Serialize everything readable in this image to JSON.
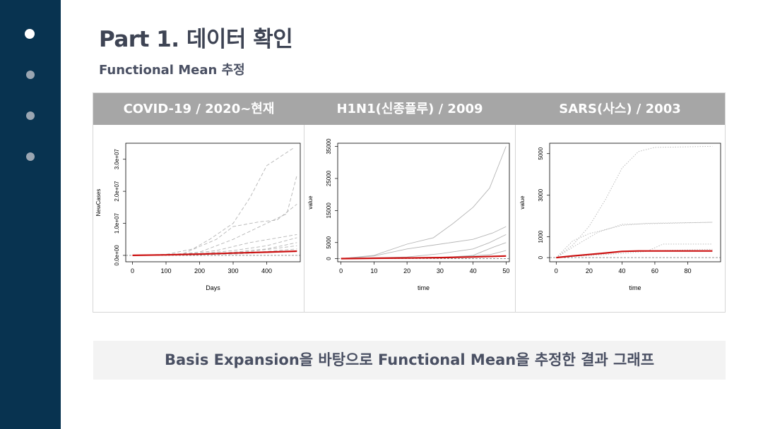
{
  "slide": {
    "title": "Part 1. 데이터 확인",
    "subtitle": "Functional Mean 추정",
    "caption": "Basis Expansion을 바탕으로 Functional Mean을 추정한 결과 그래프",
    "nav_dots": 4,
    "active_dot": 0
  },
  "colors": {
    "sidebar": "#083350",
    "header": "#a6a6a6",
    "mean_line": "#cc1111",
    "curves": "#b5b5b5"
  },
  "table": {
    "headers": [
      "COVID-19 / 2020~현재",
      "H1N1(신종플루) / 2009",
      "SARS(사스) / 2003"
    ]
  },
  "chart_data": [
    {
      "type": "line",
      "xlabel": "Days",
      "ylabel": "NewCases",
      "xlim": [
        -20,
        500
      ],
      "ylim": [
        -2000000,
        35000000
      ],
      "x_ticks": [
        0,
        100,
        200,
        300,
        400
      ],
      "x_tick_labels": [
        "0",
        "100",
        "200",
        "300",
        "400"
      ],
      "y_ticks": [
        0,
        10000000,
        20000000,
        30000000
      ],
      "y_tick_labels": [
        "0.0e+00",
        "1.0e+07",
        "2.0e+07",
        "3.0e+07"
      ],
      "curve_style": "dashed",
      "series": [
        {
          "x": [
            0,
            100,
            180,
            230,
            300,
            350,
            400,
            480
          ],
          "values": [
            0,
            300000,
            2000000,
            5000000,
            10000000,
            18000000,
            28000000,
            33500000
          ]
        },
        {
          "x": [
            0,
            100,
            200,
            300,
            400,
            460,
            490
          ],
          "values": [
            0,
            100000,
            1000000,
            5000000,
            10000000,
            13000000,
            25000000
          ]
        },
        {
          "x": [
            0,
            150,
            250,
            300,
            380,
            430,
            490
          ],
          "values": [
            0,
            500000,
            5000000,
            9000000,
            10500000,
            11000000,
            16000000
          ]
        },
        {
          "x": [
            0,
            150,
            250,
            350,
            490
          ],
          "values": [
            0,
            300000,
            1500000,
            4000000,
            6500000
          ]
        },
        {
          "x": [
            0,
            200,
            300,
            400,
            490
          ],
          "values": [
            0,
            500000,
            1500000,
            3000000,
            5500000
          ]
        },
        {
          "x": [
            0,
            200,
            300,
            400,
            490
          ],
          "values": [
            0,
            300000,
            1000000,
            2000000,
            4000000
          ]
        },
        {
          "x": [
            0,
            250,
            350,
            490
          ],
          "values": [
            0,
            500000,
            1200000,
            3000000
          ]
        },
        {
          "x": [
            0,
            250,
            350,
            490
          ],
          "values": [
            0,
            300000,
            800000,
            2000000
          ]
        },
        {
          "x": [
            0,
            300,
            400,
            490
          ],
          "values": [
            0,
            400000,
            900000,
            1500000
          ]
        }
      ],
      "mean": {
        "x": [
          0,
          100,
          200,
          300,
          400,
          490
        ],
        "values": [
          0,
          150000,
          400000,
          700000,
          1000000,
          1300000
        ]
      }
    },
    {
      "type": "line",
      "xlabel": "time",
      "ylabel": "value",
      "xlim": [
        -1,
        51
      ],
      "ylim": [
        -1000,
        36000
      ],
      "x_ticks": [
        0,
        10,
        20,
        30,
        40,
        50
      ],
      "x_tick_labels": [
        "0",
        "10",
        "20",
        "30",
        "40",
        "50"
      ],
      "y_ticks": [
        0,
        5000,
        15000,
        25000,
        35000
      ],
      "y_tick_labels": [
        "0",
        "5000",
        "15000",
        "25000",
        "35000"
      ],
      "curve_style": "solid",
      "series": [
        {
          "x": [
            0,
            10,
            20,
            28,
            34,
            40,
            45,
            50
          ],
          "values": [
            0,
            1000,
            4500,
            6500,
            11000,
            16000,
            22000,
            35000
          ]
        },
        {
          "x": [
            0,
            10,
            20,
            30,
            40,
            46,
            50
          ],
          "values": [
            0,
            800,
            3000,
            4500,
            6000,
            8000,
            10000
          ]
        },
        {
          "x": [
            0,
            20,
            30,
            40,
            45,
            50
          ],
          "values": [
            0,
            500,
            1500,
            3000,
            5000,
            7500
          ]
        },
        {
          "x": [
            0,
            30,
            40,
            46,
            50
          ],
          "values": [
            0,
            300,
            1000,
            3500,
            5000
          ]
        },
        {
          "x": [
            0,
            35,
            45,
            50
          ],
          "values": [
            0,
            500,
            1200,
            2500
          ]
        }
      ],
      "mean": {
        "x": [
          0,
          10,
          20,
          30,
          40,
          50
        ],
        "values": [
          0,
          100,
          200,
          300,
          500,
          800
        ]
      }
    },
    {
      "type": "line",
      "xlabel": "time",
      "ylabel": "value",
      "xlim": [
        -4,
        100
      ],
      "ylim": [
        -200,
        5500
      ],
      "x_ticks": [
        0,
        20,
        40,
        60,
        80
      ],
      "x_tick_labels": [
        "0",
        "20",
        "40",
        "60",
        "80"
      ],
      "y_ticks": [
        0,
        1000,
        3000,
        5000
      ],
      "y_tick_labels": [
        "0",
        "1000",
        "3000",
        "5000"
      ],
      "curve_style": "dotted",
      "series": [
        {
          "x": [
            0,
            10,
            20,
            30,
            40,
            50,
            60,
            95
          ],
          "values": [
            0,
            600,
            1500,
            2800,
            4300,
            5100,
            5300,
            5350
          ]
        },
        {
          "x": [
            0,
            10,
            20,
            30,
            40,
            55,
            95
          ],
          "values": [
            0,
            800,
            1150,
            1350,
            1550,
            1650,
            1700
          ]
        },
        {
          "x": [
            0,
            10,
            25,
            40,
            95
          ],
          "values": [
            0,
            500,
            1200,
            1600,
            1700
          ]
        },
        {
          "x": [
            0,
            40,
            55,
            65,
            95
          ],
          "values": [
            0,
            200,
            300,
            650,
            650
          ]
        },
        {
          "x": [
            0,
            20,
            40,
            95
          ],
          "values": [
            0,
            150,
            300,
            400
          ]
        }
      ],
      "mean": {
        "x": [
          0,
          10,
          20,
          30,
          40,
          50,
          95
        ],
        "values": [
          0,
          80,
          150,
          220,
          300,
          320,
          320
        ]
      }
    }
  ]
}
